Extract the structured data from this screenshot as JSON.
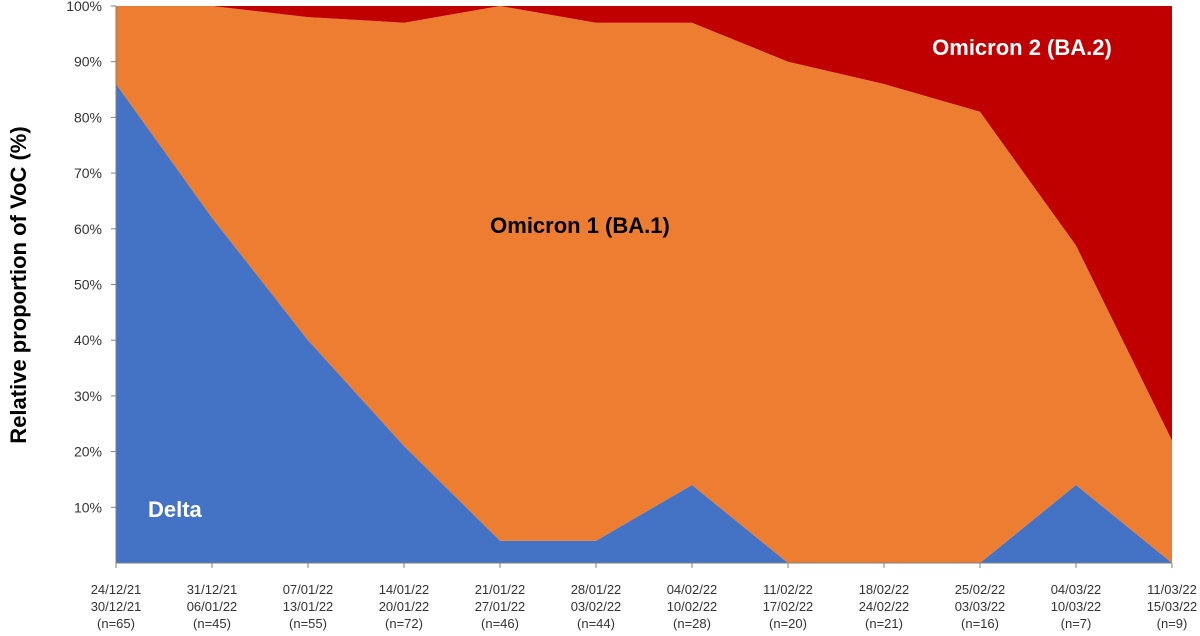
{
  "chart_data": {
    "type": "area",
    "stacked": true,
    "ylabel": "Relative proportion of VoC (%)",
    "ylim": [
      0,
      100
    ],
    "y_ticks": [
      "10%",
      "20%",
      "30%",
      "40%",
      "50%",
      "60%",
      "70%",
      "80%",
      "90%",
      "100%"
    ],
    "categories": [
      {
        "line1": "24/12/21",
        "line2": "30/12/21",
        "line3": "(n=65)"
      },
      {
        "line1": "31/12/21",
        "line2": "06/01/22",
        "line3": "(n=45)"
      },
      {
        "line1": "07/01/22",
        "line2": "13/01/22",
        "line3": "(n=55)"
      },
      {
        "line1": "14/01/22",
        "line2": "20/01/22",
        "line3": "(n=72)"
      },
      {
        "line1": "21/01/22",
        "line2": "27/01/22",
        "line3": "(n=46)"
      },
      {
        "line1": "28/01/22",
        "line2": "03/02/22",
        "line3": "(n=44)"
      },
      {
        "line1": "04/02/22",
        "line2": "10/02/22",
        "line3": "(n=28)"
      },
      {
        "line1": "11/02/22",
        "line2": "17/02/22",
        "line3": "(n=20)"
      },
      {
        "line1": "18/02/22",
        "line2": "24/02/22",
        "line3": "(n=21)"
      },
      {
        "line1": "25/02/22",
        "line2": "03/03/22",
        "line3": "(n=16)"
      },
      {
        "line1": "04/03/22",
        "line2": "10/03/22",
        "line3": "(n=7)"
      },
      {
        "line1": "11/03/22",
        "line2": "15/03/22",
        "line3": "(n=9)"
      }
    ],
    "series": [
      {
        "name": "Delta",
        "color": "#4472C4",
        "label_color": "#ffffff",
        "values": [
          86,
          62,
          40,
          21,
          4,
          4,
          14,
          0,
          0,
          0,
          14,
          0
        ]
      },
      {
        "name": "Omicron 1 (BA.1)",
        "color": "#ED7D31",
        "label_color": "#000000",
        "values": [
          14,
          38,
          58,
          76,
          96,
          93,
          83,
          90,
          86,
          81,
          43,
          22
        ]
      },
      {
        "name": "Omicron 2 (BA.2)",
        "color": "#C00000",
        "label_color": "#ffffff",
        "values": [
          0,
          0,
          2,
          3,
          0,
          3,
          3,
          10,
          14,
          19,
          43,
          78
        ]
      }
    ],
    "grid": false,
    "legend": "none"
  }
}
